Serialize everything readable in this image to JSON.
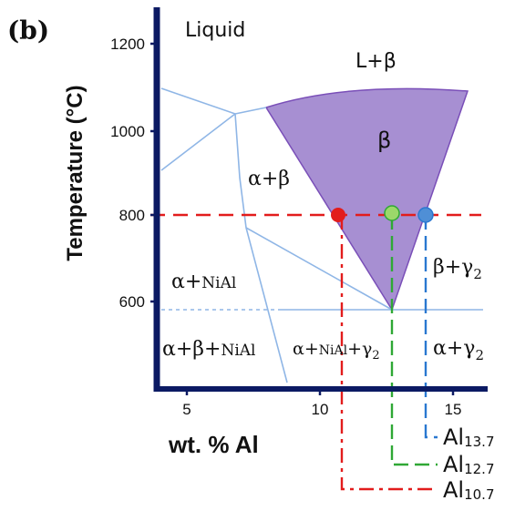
{
  "panel_label": "(b)",
  "axes": {
    "x_label": "wt. % Al",
    "y_label": "Temperature (°C)",
    "x_ticks": [
      "5",
      "10",
      "15"
    ],
    "y_ticks": [
      "1200",
      "1000",
      "800",
      "600"
    ]
  },
  "regions": {
    "liquid": "Liquid",
    "l_beta": "L+β",
    "beta": "β",
    "alpha_beta": "α+β",
    "alpha_nial_alpha": "α+",
    "alpha_nial_sub": "NiAl",
    "abn_alpha": "α+β+",
    "abn_sub": "NiAl",
    "ang_alpha": "α+",
    "ang_nial": "NiAl",
    "ang_plus": "+γ",
    "ang_sub": "2",
    "beta_gamma": "β+γ",
    "beta_gamma_sub": "2",
    "alpha_gamma": "α+γ",
    "alpha_gamma_sub": "2"
  },
  "alloys": [
    {
      "name": "Al",
      "sub": "13.7",
      "wt_al": 13.7,
      "color": "#2a78d0"
    },
    {
      "name": "Al",
      "sub": "12.7",
      "wt_al": 12.7,
      "color": "#2fa835"
    },
    {
      "name": "Al",
      "sub": "10.7",
      "wt_al": 10.7,
      "color": "#e21c1c"
    }
  ],
  "isotherm_c": 800,
  "colors": {
    "axis": "#0b1a63",
    "phase_line": "#8fb6e6",
    "beta_fill": "#a78fd2",
    "beta_edge": "#7a4fb8",
    "isotherm": "#e21c1c",
    "marker_red": "#e21c1c",
    "marker_green": "#9bd86a",
    "marker_blue": "#4f8fd6"
  }
}
